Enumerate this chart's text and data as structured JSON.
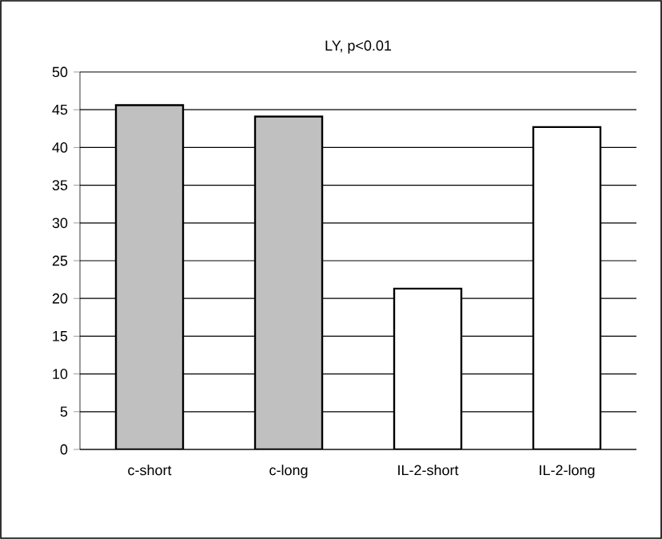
{
  "chart_data": {
    "type": "bar",
    "title": "LY, p<0.01",
    "categories": [
      "c-short",
      "c-long",
      "IL-2-short",
      "IL-2-long"
    ],
    "values": [
      45.6,
      44.1,
      21.3,
      42.7
    ],
    "colors": [
      "#c0c0c0",
      "#c0c0c0",
      "#ffffff",
      "#ffffff"
    ],
    "ylim": [
      0,
      50
    ],
    "yticks": [
      0,
      5,
      10,
      15,
      20,
      25,
      30,
      35,
      40,
      45,
      50
    ],
    "grid": "y"
  }
}
